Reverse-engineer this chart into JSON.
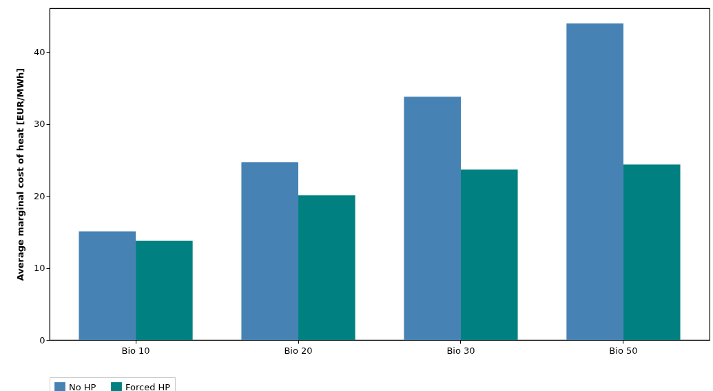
{
  "chart_data": {
    "type": "bar",
    "ylabel": "Average marginal cost of heat [EUR/MWh]",
    "categories": [
      "Bio 10",
      "Bio 20",
      "Bio 30",
      "Bio 50"
    ],
    "series": [
      {
        "name": "No HP",
        "color": "#4682b4",
        "values": [
          15.1,
          24.7,
          33.8,
          44.0
        ]
      },
      {
        "name": "Forced HP",
        "color": "#008080",
        "values": [
          13.8,
          20.1,
          23.7,
          24.4
        ]
      }
    ],
    "ylim": [
      0,
      46.1
    ],
    "yticks": [
      0,
      10,
      20,
      30,
      40
    ],
    "legend": "bottom"
  }
}
